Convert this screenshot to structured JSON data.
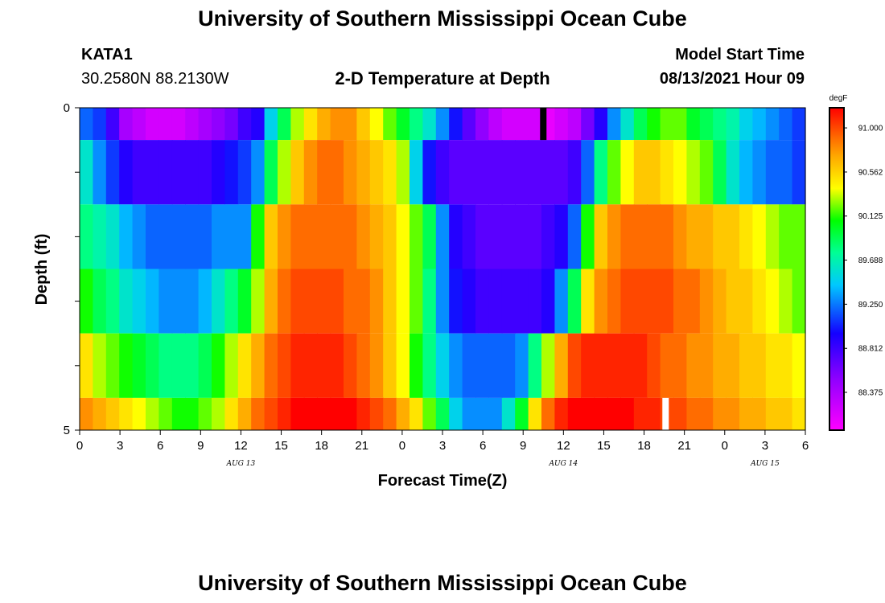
{
  "header": {
    "title": "University of Southern Mississippi Ocean Cube",
    "station": "KATA1",
    "coords": "30.2580N  88.2130W",
    "subtitle": "2-D Temperature at Depth",
    "model_start_label": "Model Start Time",
    "model_start_value": "08/13/2021 Hour 09"
  },
  "footer": {
    "title": "University of Southern Mississippi Ocean Cube"
  },
  "chart_data": {
    "type": "heatmap",
    "xlabel": "Forecast Time(Z)",
    "ylabel": "Depth (ft)",
    "x_ticks": [
      "0",
      "3",
      "6",
      "9",
      "12",
      "15",
      "18",
      "21",
      "0",
      "3",
      "6",
      "9",
      "12",
      "15",
      "18",
      "21",
      "0",
      "3",
      "6"
    ],
    "date_labels": [
      {
        "text": "AUG 13",
        "tick_index": 4
      },
      {
        "text": "AUG 14",
        "tick_index": 12
      },
      {
        "text": "AUG 15",
        "tick_index": 17
      }
    ],
    "y_ticks": [
      "0",
      "5"
    ],
    "ylim": [
      0,
      5
    ],
    "x_range_hours": [
      0,
      54
    ],
    "colorbar": {
      "unit": "degF",
      "labels": [
        "91.000",
        "90.562",
        "90.125",
        "89.688",
        "89.250",
        "88.812",
        "88.375"
      ],
      "range": [
        88.0,
        91.2
      ]
    },
    "layers": [
      {
        "depth_range": [
          0,
          0.5
        ],
        "values": [
          89.2,
          89.1,
          88.8,
          88.4,
          88.3,
          88.2,
          88.2,
          88.2,
          88.3,
          88.4,
          88.5,
          88.6,
          88.8,
          88.9,
          89.5,
          89.9,
          90.3,
          90.5,
          90.7,
          90.8,
          90.8,
          90.6,
          90.4,
          90.2,
          90.0,
          89.8,
          89.6,
          89.3,
          89.0,
          88.7,
          88.5,
          88.3,
          88.2,
          88.2,
          88.2,
          88.1,
          88.2,
          88.3,
          88.6,
          88.9,
          89.3,
          89.6,
          89.9,
          90.1,
          90.2,
          90.2,
          90.0,
          89.9,
          89.8,
          89.7,
          89.5,
          89.4,
          89.3,
          89.2,
          89.1
        ]
      },
      {
        "depth_range": [
          0.5,
          1.5
        ],
        "values": [
          89.6,
          89.3,
          89.1,
          88.9,
          88.8,
          88.8,
          88.8,
          88.8,
          88.8,
          88.8,
          88.9,
          89.0,
          89.1,
          89.3,
          89.9,
          90.3,
          90.6,
          90.8,
          90.9,
          90.9,
          90.8,
          90.7,
          90.6,
          90.5,
          90.3,
          89.5,
          89.0,
          88.8,
          88.7,
          88.7,
          88.7,
          88.7,
          88.7,
          88.7,
          88.7,
          88.7,
          88.7,
          88.8,
          89.2,
          89.8,
          90.2,
          90.4,
          90.6,
          90.6,
          90.5,
          90.4,
          90.3,
          90.2,
          89.9,
          89.6,
          89.4,
          89.3,
          89.2,
          89.2,
          89.1
        ]
      },
      {
        "depth_range": [
          1.5,
          2.5
        ],
        "values": [
          89.8,
          89.7,
          89.6,
          89.4,
          89.3,
          89.2,
          89.2,
          89.2,
          89.2,
          89.2,
          89.3,
          89.3,
          89.3,
          90.1,
          90.6,
          90.8,
          90.9,
          90.9,
          90.9,
          90.9,
          90.9,
          90.8,
          90.7,
          90.6,
          90.4,
          90.2,
          89.9,
          89.3,
          88.9,
          88.8,
          88.7,
          88.7,
          88.7,
          88.7,
          88.7,
          88.8,
          88.9,
          89.2,
          90.1,
          90.6,
          90.8,
          90.9,
          90.9,
          90.9,
          90.9,
          90.8,
          90.7,
          90.7,
          90.6,
          90.6,
          90.5,
          90.4,
          90.3,
          90.2,
          90.2
        ]
      },
      {
        "depth_range": [
          2.5,
          3.5
        ],
        "values": [
          90.1,
          89.9,
          89.8,
          89.6,
          89.5,
          89.4,
          89.3,
          89.3,
          89.3,
          89.4,
          89.6,
          89.8,
          90.0,
          90.3,
          90.7,
          90.9,
          91.0,
          91.0,
          91.0,
          91.0,
          90.9,
          90.9,
          90.8,
          90.6,
          90.4,
          90.2,
          89.8,
          89.3,
          89.0,
          88.9,
          88.8,
          88.8,
          88.8,
          88.8,
          88.8,
          88.9,
          89.3,
          89.9,
          90.5,
          90.8,
          90.9,
          91.0,
          91.0,
          91.0,
          91.0,
          90.9,
          90.9,
          90.8,
          90.7,
          90.6,
          90.6,
          90.5,
          90.4,
          90.3,
          90.2
        ]
      },
      {
        "depth_range": [
          3.5,
          4.5
        ],
        "values": [
          90.5,
          90.3,
          90.2,
          90.1,
          90.0,
          89.9,
          89.8,
          89.8,
          89.8,
          89.9,
          90.1,
          90.3,
          90.5,
          90.7,
          90.9,
          91.0,
          91.1,
          91.1,
          91.1,
          91.1,
          91.0,
          90.9,
          90.8,
          90.6,
          90.4,
          90.1,
          89.8,
          89.5,
          89.3,
          89.2,
          89.2,
          89.2,
          89.2,
          89.3,
          89.8,
          90.3,
          90.7,
          91.0,
          91.1,
          91.1,
          91.1,
          91.1,
          91.1,
          91.0,
          90.9,
          90.9,
          90.8,
          90.8,
          90.7,
          90.7,
          90.6,
          90.6,
          90.5,
          90.5,
          90.4
        ]
      },
      {
        "depth_range": [
          4.5,
          5
        ],
        "values": [
          90.8,
          90.7,
          90.6,
          90.5,
          90.4,
          90.3,
          90.2,
          90.1,
          90.1,
          90.2,
          90.3,
          90.5,
          90.7,
          90.9,
          91.0,
          91.1,
          91.2,
          91.2,
          91.2,
          91.2,
          91.2,
          91.1,
          91.0,
          90.9,
          90.7,
          90.5,
          90.2,
          89.9,
          89.5,
          89.3,
          89.3,
          89.3,
          89.6,
          90.0,
          90.5,
          90.9,
          91.1,
          91.2,
          91.2,
          91.2,
          91.2,
          91.2,
          91.1,
          91.1,
          91.0,
          91.0,
          90.9,
          90.9,
          90.8,
          90.8,
          90.7,
          90.7,
          90.6,
          90.6,
          90.5
        ]
      }
    ],
    "markers": [
      {
        "color": "#000000",
        "x_hour": 34.5,
        "depth_range": [
          0,
          0.5
        ]
      },
      {
        "color": "#ffffff",
        "x_hour": 43.6,
        "depth_range": [
          4.5,
          5
        ]
      }
    ]
  }
}
